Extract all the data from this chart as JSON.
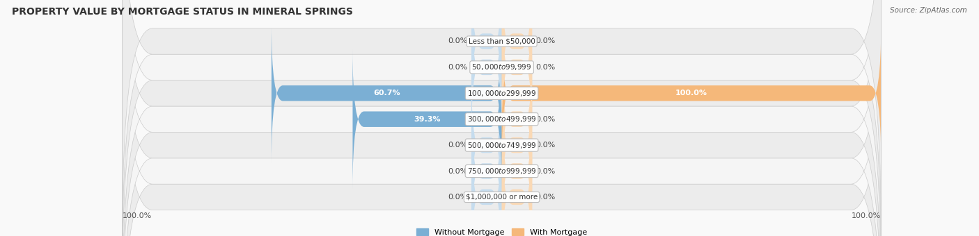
{
  "title": "PROPERTY VALUE BY MORTGAGE STATUS IN MINERAL SPRINGS",
  "source": "Source: ZipAtlas.com",
  "categories": [
    "Less than $50,000",
    "$50,000 to $99,999",
    "$100,000 to $299,999",
    "$300,000 to $499,999",
    "$500,000 to $749,999",
    "$750,000 to $999,999",
    "$1,000,000 or more"
  ],
  "without_mortgage": [
    0.0,
    0.0,
    60.7,
    39.3,
    0.0,
    0.0,
    0.0
  ],
  "with_mortgage": [
    0.0,
    0.0,
    100.0,
    0.0,
    0.0,
    0.0,
    0.0
  ],
  "color_without": "#7bafd4",
  "color_with": "#f5b87a",
  "color_without_light": "#c5dcee",
  "color_with_light": "#fad9b5",
  "stub_size": 8.0,
  "title_fontsize": 10,
  "label_fontsize": 8.0,
  "tick_fontsize": 8,
  "max_val": 100.0,
  "legend_without": "Without Mortgage",
  "legend_with": "With Mortgage",
  "row_colors": [
    "#ececec",
    "#f5f5f5",
    "#ececec",
    "#f5f5f5",
    "#ececec",
    "#f5f5f5",
    "#ececec"
  ]
}
